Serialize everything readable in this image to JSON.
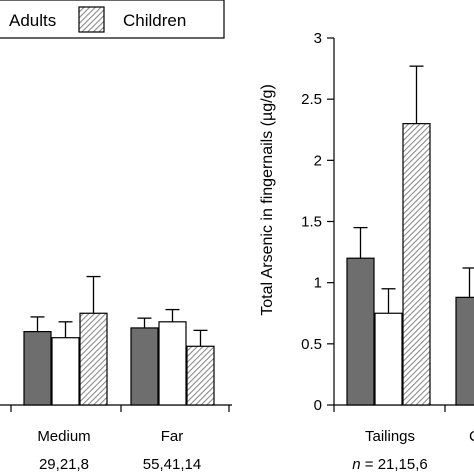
{
  "legend": {
    "entries": [
      {
        "label": "Adults",
        "swatch": "solid-gray",
        "visible_swatch": false
      },
      {
        "label": "Children",
        "swatch": "hatched"
      }
    ],
    "placement": "top-left"
  },
  "colors": {
    "adults": "#6e6e6e",
    "teens": "#ffffff",
    "children_hatch": "#9a9a9a",
    "stroke": "#000000"
  },
  "chart_data": [
    {
      "type": "bar",
      "title": "",
      "xlabel": "",
      "ylabel": "",
      "ylim": [
        0,
        3
      ],
      "grid": false,
      "categories": [
        "Medium",
        "Far"
      ],
      "sample_sizes": [
        "29,21,8",
        "55,41,14"
      ],
      "series": [
        {
          "name": "Adults",
          "values": [
            0.6,
            0.63
          ],
          "errors": [
            0.12,
            0.08
          ]
        },
        {
          "values": [
            0.55,
            0.68
          ],
          "errors": [
            0.13,
            0.1
          ]
        },
        {
          "name": "Children",
          "values": [
            0.75,
            0.48
          ],
          "errors": [
            0.3,
            0.13
          ]
        }
      ]
    },
    {
      "type": "bar",
      "title": "",
      "xlabel": "",
      "ylabel": "Total Arsenic in fingernails (µg/g)",
      "ylim": [
        0,
        3
      ],
      "yticks": [
        "0",
        "0.5",
        "1",
        "1.5",
        "2",
        "2.5",
        "3"
      ],
      "grid": false,
      "categories": [
        "Tailings",
        "C"
      ],
      "sample_sizes": [
        "n = 21,15,6",
        ""
      ],
      "series": [
        {
          "name": "Adults",
          "values": [
            1.2,
            0.88
          ],
          "errors": [
            0.25,
            0.24
          ]
        },
        {
          "values": [
            0.75,
            null
          ],
          "errors": [
            0.2,
            null
          ]
        },
        {
          "name": "Children",
          "values": [
            2.3,
            null
          ],
          "errors": [
            0.47,
            null
          ]
        }
      ]
    }
  ]
}
